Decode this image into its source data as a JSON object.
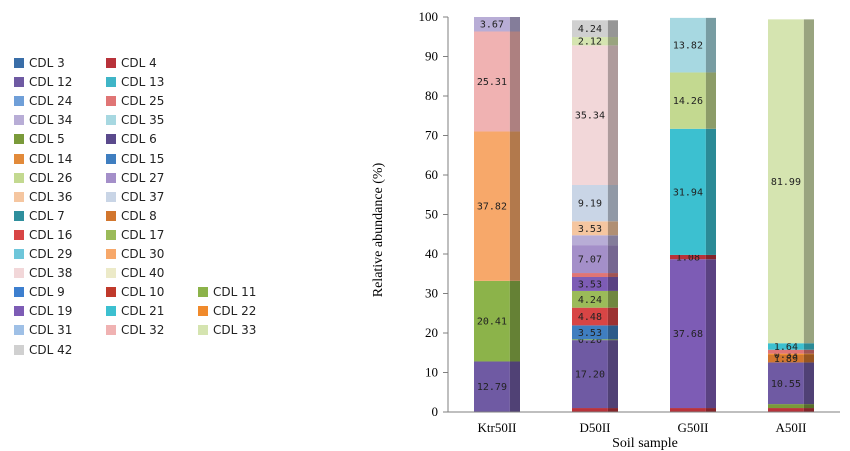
{
  "chart_data": {
    "type": "bar",
    "stacked": true,
    "categories": [
      "Ktr50II",
      "D50II",
      "G50II",
      "A50II"
    ],
    "xlabel": "Soil sample",
    "ylabel": "Relative abundance (%)",
    "ylim": [
      0,
      100
    ],
    "yticks": [
      "0",
      "10",
      "20",
      "30",
      "40",
      "50",
      "60",
      "70",
      "80",
      "90",
      "100"
    ],
    "grid": false,
    "legend_position": "left",
    "legend": [
      {
        "label": "CDL 3",
        "color": "#3a6ea8"
      },
      {
        "label": "CDL 4",
        "color": "#b8323a"
      },
      {
        "label": "CDL 12",
        "color": "#6f5aa3"
      },
      {
        "label": "CDL 13",
        "color": "#3fb5c7"
      },
      {
        "label": "CDL 24",
        "color": "#6f9fd8"
      },
      {
        "label": "CDL 25",
        "color": "#e07575"
      },
      {
        "label": "CDL 34",
        "color": "#b8add6"
      },
      {
        "label": "CDL 35",
        "color": "#a7d8e1"
      },
      {
        "label": "CDL 5",
        "color": "#7a9a3a"
      },
      {
        "label": "CDL 6",
        "color": "#5a4a8c"
      },
      {
        "label": "CDL 14",
        "color": "#e28a3a"
      },
      {
        "label": "CDL 15",
        "color": "#3f7ec0"
      },
      {
        "label": "CDL 26",
        "color": "#c3d990"
      },
      {
        "label": "CDL 27",
        "color": "#a48fc9"
      },
      {
        "label": "CDL 36",
        "color": "#f5c6a0"
      },
      {
        "label": "CDL 37",
        "color": "#c9d5e6"
      },
      {
        "label": "CDL 7",
        "color": "#2f8f9d"
      },
      {
        "label": "CDL 8",
        "color": "#d2762e"
      },
      {
        "label": "CDL 16",
        "color": "#d84545"
      },
      {
        "label": "CDL 17",
        "color": "#9bbb59"
      },
      {
        "label": "CDL 29",
        "color": "#6ec6da"
      },
      {
        "label": "CDL 30",
        "color": "#f7a86a"
      },
      {
        "label": "CDL 38",
        "color": "#f2d7d9"
      },
      {
        "label": "CDL 40",
        "color": "#eceac8"
      },
      {
        "label": "CDL 9",
        "color": "#3d7fcf"
      },
      {
        "label": "CDL 10",
        "color": "#c0392b"
      },
      {
        "label": "CDL 11",
        "color": "#8cb34a"
      },
      {
        "label": "CDL 19",
        "color": "#7d5cb5"
      },
      {
        "label": "CDL 21",
        "color": "#3cc0d0"
      },
      {
        "label": "CDL 22",
        "color": "#f08a2c"
      },
      {
        "label": "CDL 31",
        "color": "#9fc0e6"
      },
      {
        "label": "CDL 32",
        "color": "#f0b2b2"
      },
      {
        "label": "CDL 33",
        "color": "#d5e4b0"
      },
      {
        "label": "CDL 42",
        "color": "#d0d0d0"
      }
    ],
    "stacks": [
      {
        "category": "Ktr50II",
        "segments": [
          {
            "value": 12.79,
            "label": "12.79",
            "color": "#6f5aa3"
          },
          {
            "value": 20.41,
            "label": "20.41",
            "color": "#8cb34a"
          },
          {
            "value": 37.82,
            "label": "37.82",
            "color": "#f7a86a"
          },
          {
            "value": 25.31,
            "label": "25.31",
            "color": "#f0b2b2"
          },
          {
            "value": 3.67,
            "label": "3.67",
            "color": "#b8add6"
          }
        ]
      },
      {
        "category": "D50II",
        "segments": [
          {
            "value": 1.0,
            "label": "",
            "color": "#b8323a"
          },
          {
            "value": 17.2,
            "label": "17.20",
            "color": "#6f5aa3"
          },
          {
            "value": 0.2,
            "label": "0.20",
            "color": "#8cb34a"
          },
          {
            "value": 3.53,
            "label": "3.53",
            "color": "#3f7ec0"
          },
          {
            "value": 4.48,
            "label": "4.48",
            "color": "#d84545"
          },
          {
            "value": 4.24,
            "label": "4.24",
            "color": "#9bbb59"
          },
          {
            "value": 3.53,
            "label": "3.53",
            "color": "#7d5cb5"
          },
          {
            "value": 1.0,
            "label": "",
            "color": "#e07575"
          },
          {
            "value": 7.07,
            "label": "7.07",
            "color": "#a48fc9"
          },
          {
            "value": 2.5,
            "label": "",
            "color": "#b8add6"
          },
          {
            "value": 3.53,
            "label": "3.53",
            "color": "#f5c6a0"
          },
          {
            "value": 9.19,
            "label": "9.19",
            "color": "#c9d5e6"
          },
          {
            "value": 35.34,
            "label": "35.34",
            "color": "#f2d7d9"
          },
          {
            "value": 2.12,
            "label": "2.12",
            "color": "#d5e4b0"
          },
          {
            "value": 4.24,
            "label": "4.24",
            "color": "#d0d0d0"
          }
        ]
      },
      {
        "category": "G50II",
        "segments": [
          {
            "value": 1.0,
            "label": "",
            "color": "#b8323a"
          },
          {
            "value": 37.68,
            "label": "37.68",
            "color": "#7d5cb5"
          },
          {
            "value": 1.08,
            "label": "1.08",
            "color": "#b8323a"
          },
          {
            "value": 31.94,
            "label": "31.94",
            "color": "#3cc0d0"
          },
          {
            "value": 14.26,
            "label": "14.26",
            "color": "#c3d990"
          },
          {
            "value": 13.82,
            "label": "13.82",
            "color": "#a7d8e1"
          }
        ]
      },
      {
        "category": "A50II",
        "segments": [
          {
            "value": 1.0,
            "label": "",
            "color": "#b8323a"
          },
          {
            "value": 1.0,
            "label": "",
            "color": "#7a9a3a"
          },
          {
            "value": 10.55,
            "label": "10.55",
            "color": "#6f5aa3"
          },
          {
            "value": 1.89,
            "label": "1.89",
            "color": "#d2762e"
          },
          {
            "value": 0.33,
            "label": "0.33",
            "color": "#f08a2c"
          },
          {
            "value": 1.0,
            "label": "",
            "color": "#e07575"
          },
          {
            "value": 1.64,
            "label": "1.64",
            "color": "#3cc0d0"
          },
          {
            "value": 81.99,
            "label": "81.99",
            "color": "#d5e4b0"
          }
        ]
      }
    ]
  }
}
